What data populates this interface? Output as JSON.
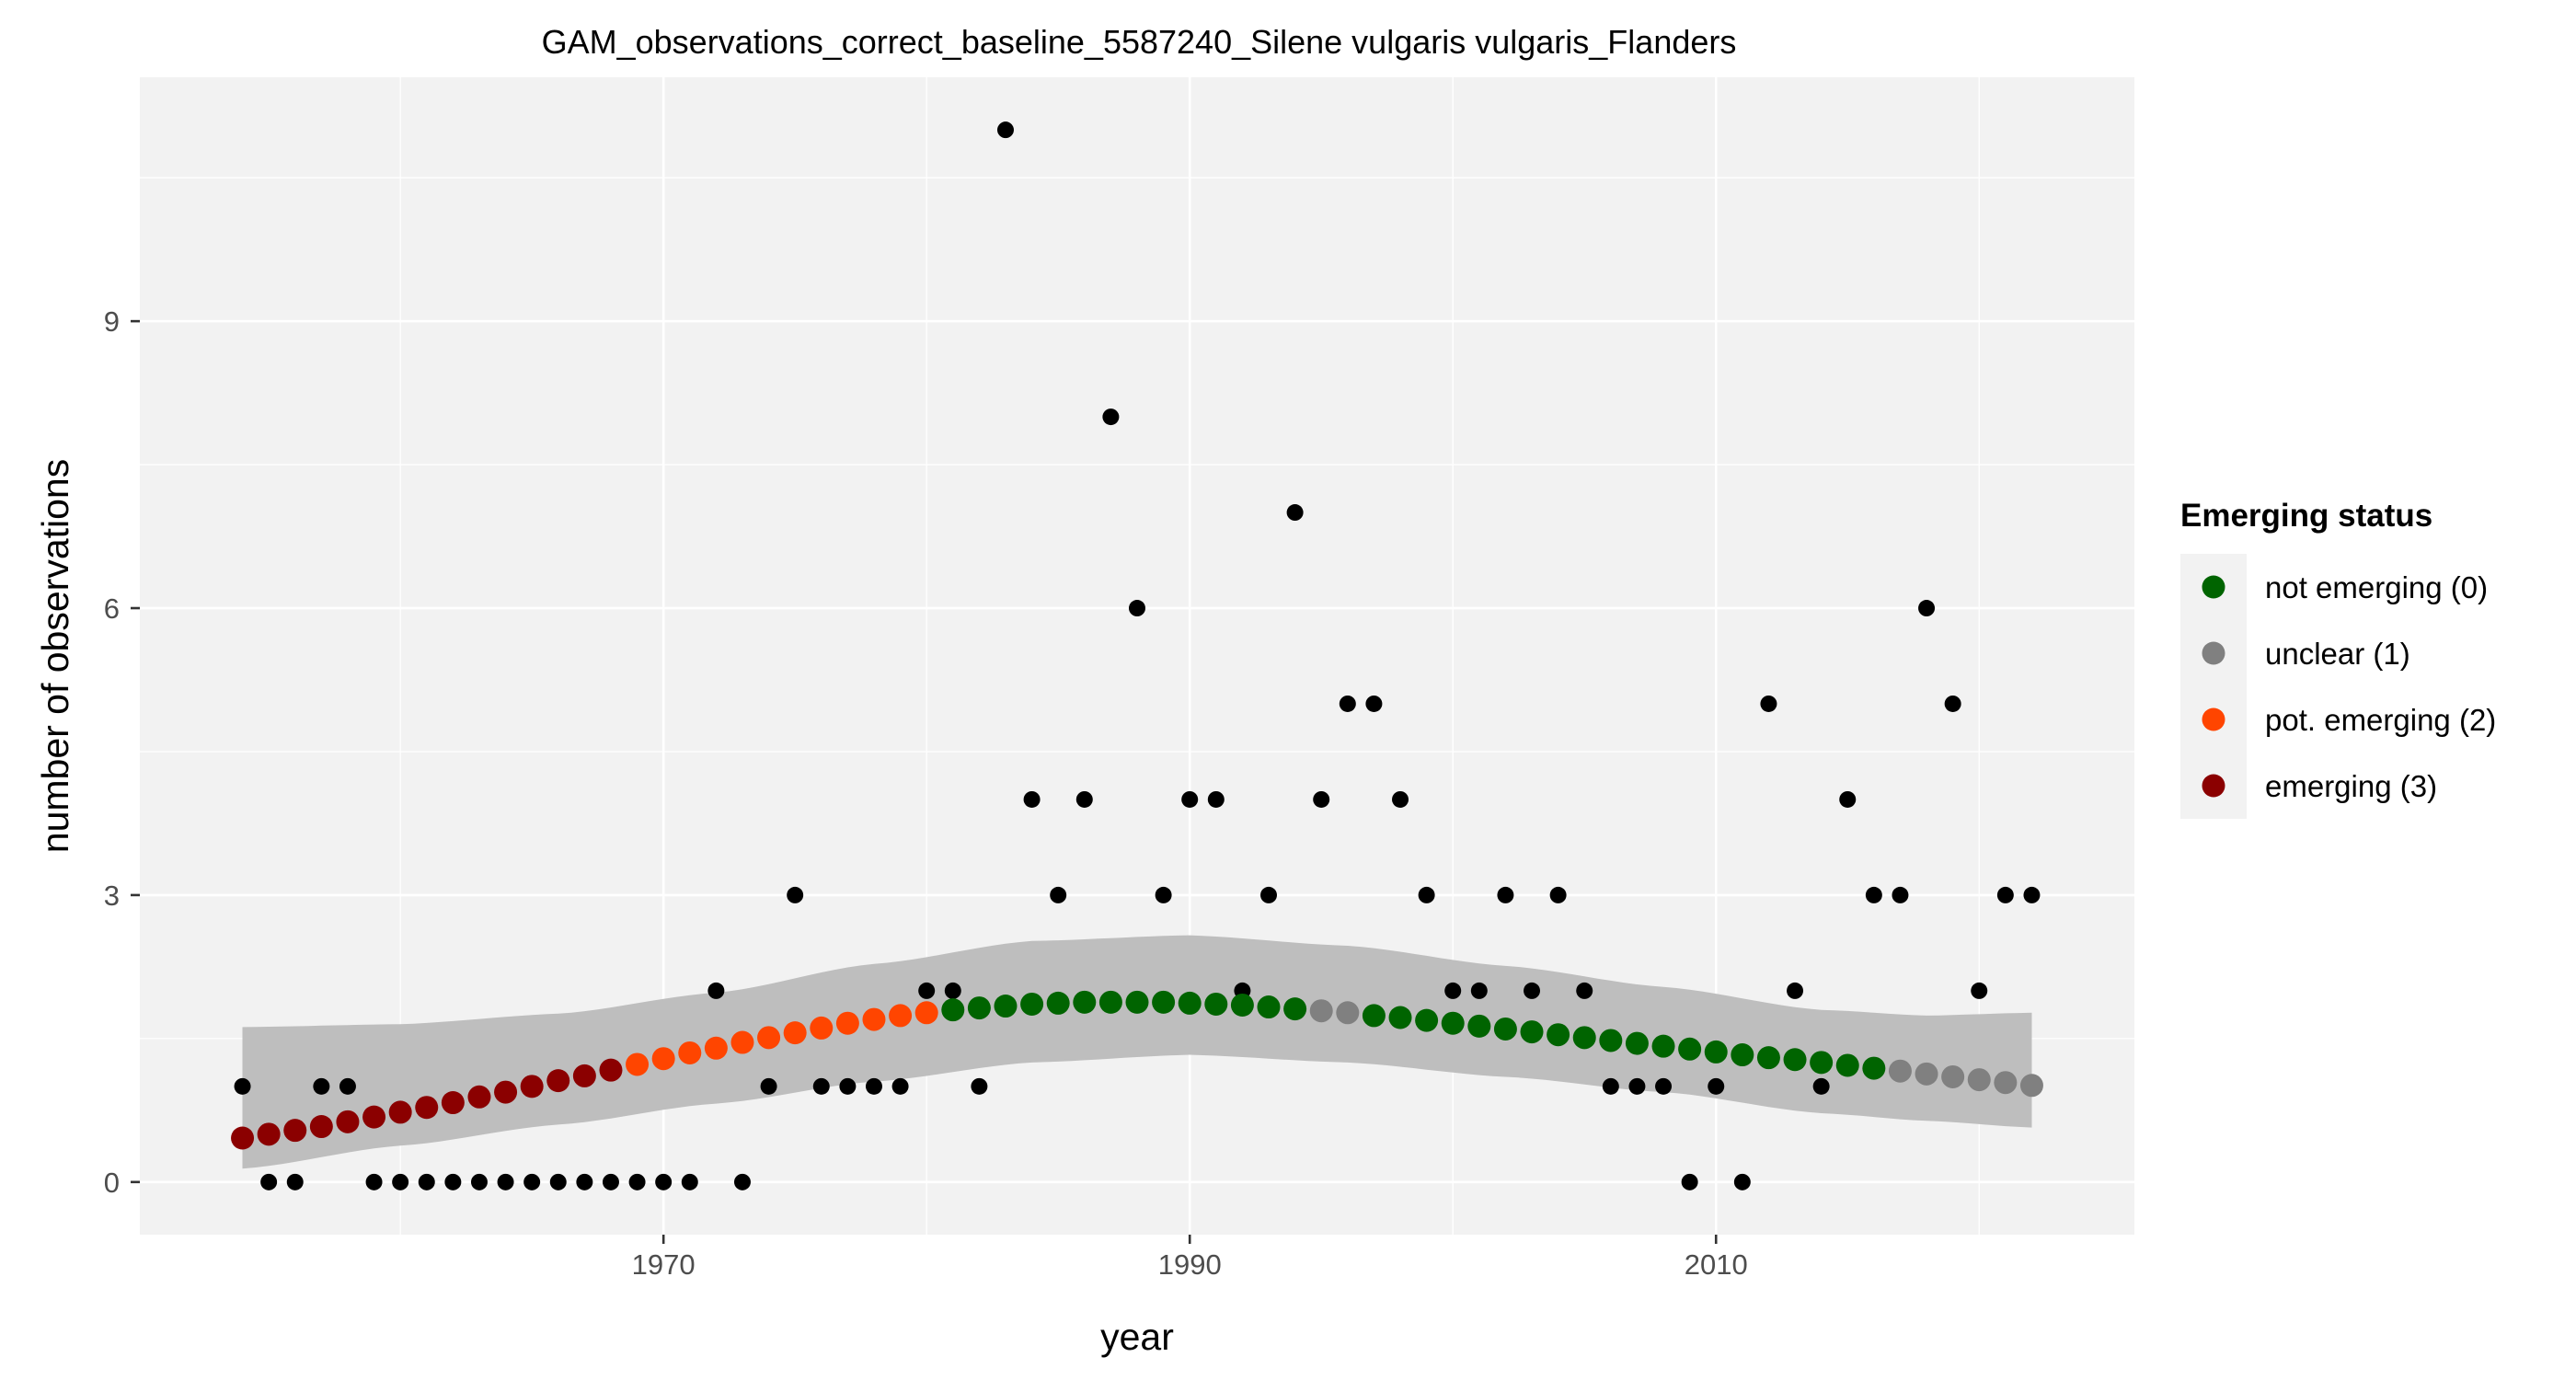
{
  "chart_data": {
    "type": "scatter",
    "title": "GAM_observations_correct_baseline_5587240_Silene vulgaris vulgaris_Flanders",
    "xlabel": "year",
    "ylabel": "number of observations",
    "xlim": [
      1950.1,
      2025.9
    ],
    "ylim": [
      -0.55,
      11.55
    ],
    "x_ticks": [
      1970,
      1990,
      2010
    ],
    "y_ticks": [
      0,
      3,
      6,
      9
    ],
    "grid": true,
    "legend": {
      "title": "Emerging status",
      "position": "right",
      "entries": [
        {
          "status": 0,
          "label": "not emerging (0)",
          "color": "#006400"
        },
        {
          "status": 1,
          "label": "unclear (1)",
          "color": "#808080"
        },
        {
          "status": 2,
          "label": "pot. emerging (2)",
          "color": "#FF4500"
        },
        {
          "status": 3,
          "label": "emerging (3)",
          "color": "#8B0000"
        }
      ]
    },
    "colors": {
      "panel_background": "#f2f2f2",
      "gridline": "#ffffff",
      "confidence_band": "#bebebe",
      "observation_point": "#000000"
    },
    "observations": {
      "x": [
        1954,
        1955,
        1956,
        1957,
        1958,
        1959,
        1960,
        1961,
        1962,
        1963,
        1964,
        1965,
        1966,
        1967,
        1968,
        1969,
        1970,
        1971,
        1972,
        1973,
        1974,
        1975,
        1976,
        1977,
        1978,
        1979,
        1980,
        1981,
        1982,
        1983,
        1984,
        1985,
        1986,
        1987,
        1988,
        1989,
        1990,
        1991,
        1992,
        1993,
        1994,
        1995,
        1996,
        1997,
        1998,
        1999,
        2000,
        2001,
        2002,
        2003,
        2004,
        2005,
        2006,
        2007,
        2008,
        2009,
        2010,
        2011,
        2012,
        2013,
        2014,
        2015,
        2016,
        2017,
        2018,
        2019,
        2020,
        2021,
        2022
      ],
      "y": [
        1,
        0,
        0,
        1,
        1,
        0,
        0,
        0,
        0,
        0,
        0,
        0,
        0,
        0,
        0,
        0,
        0,
        0,
        2,
        0,
        1,
        3,
        1,
        1,
        1,
        1,
        2,
        2,
        1,
        11,
        4,
        3,
        4,
        8,
        6,
        3,
        4,
        4,
        2,
        3,
        7,
        4,
        5,
        5,
        4,
        3,
        2,
        2,
        3,
        2,
        3,
        2,
        1,
        1,
        1,
        0,
        1,
        0,
        5,
        2,
        1,
        4,
        3,
        3,
        6,
        5,
        2,
        3,
        3
      ]
    },
    "gam_fit": {
      "x": [
        1954,
        1955,
        1956,
        1957,
        1958,
        1959,
        1960,
        1961,
        1962,
        1963,
        1964,
        1965,
        1966,
        1967,
        1968,
        1969,
        1970,
        1971,
        1972,
        1973,
        1974,
        1975,
        1976,
        1977,
        1978,
        1979,
        1980,
        1981,
        1982,
        1983,
        1984,
        1985,
        1986,
        1987,
        1988,
        1989,
        1990,
        1991,
        1992,
        1993,
        1994,
        1995,
        1996,
        1997,
        1998,
        1999,
        2000,
        2001,
        2002,
        2003,
        2004,
        2005,
        2006,
        2007,
        2008,
        2009,
        2010,
        2011,
        2012,
        2013,
        2014,
        2015,
        2016,
        2017,
        2018,
        2019,
        2020,
        2021,
        2022
      ],
      "y": [
        0.46,
        0.5,
        0.54,
        0.58,
        0.63,
        0.68,
        0.73,
        0.78,
        0.83,
        0.89,
        0.94,
        1.0,
        1.06,
        1.11,
        1.17,
        1.23,
        1.29,
        1.35,
        1.4,
        1.46,
        1.51,
        1.56,
        1.61,
        1.66,
        1.7,
        1.74,
        1.77,
        1.8,
        1.82,
        1.84,
        1.86,
        1.87,
        1.88,
        1.88,
        1.88,
        1.88,
        1.87,
        1.86,
        1.85,
        1.83,
        1.81,
        1.79,
        1.77,
        1.74,
        1.72,
        1.69,
        1.66,
        1.63,
        1.6,
        1.57,
        1.54,
        1.51,
        1.48,
        1.45,
        1.42,
        1.39,
        1.36,
        1.33,
        1.3,
        1.28,
        1.25,
        1.22,
        1.19,
        1.16,
        1.13,
        1.1,
        1.07,
        1.04,
        1.01
      ],
      "status": [
        3,
        3,
        3,
        3,
        3,
        3,
        3,
        3,
        3,
        3,
        3,
        3,
        3,
        3,
        3,
        2,
        2,
        2,
        2,
        2,
        2,
        2,
        2,
        2,
        2,
        2,
        2,
        0,
        0,
        0,
        0,
        0,
        0,
        0,
        0,
        0,
        0,
        0,
        0,
        0,
        0,
        1,
        1,
        0,
        0,
        0,
        0,
        0,
        0,
        0,
        0,
        0,
        0,
        0,
        0,
        0,
        0,
        0,
        0,
        0,
        0,
        0,
        0,
        1,
        1,
        1,
        1,
        1,
        1
      ]
    },
    "confidence_band": {
      "x": [
        1954,
        1960,
        1966,
        1972,
        1978,
        1984,
        1990,
        1996,
        2002,
        2008,
        2014,
        2018,
        2022
      ],
      "lower": [
        0.14,
        0.38,
        0.6,
        0.82,
        1.05,
        1.25,
        1.33,
        1.25,
        1.1,
        0.94,
        0.72,
        0.64,
        0.57
      ],
      "upper": [
        1.62,
        1.65,
        1.76,
        1.98,
        2.28,
        2.52,
        2.58,
        2.47,
        2.26,
        2.04,
        1.8,
        1.74,
        1.77
      ]
    }
  }
}
